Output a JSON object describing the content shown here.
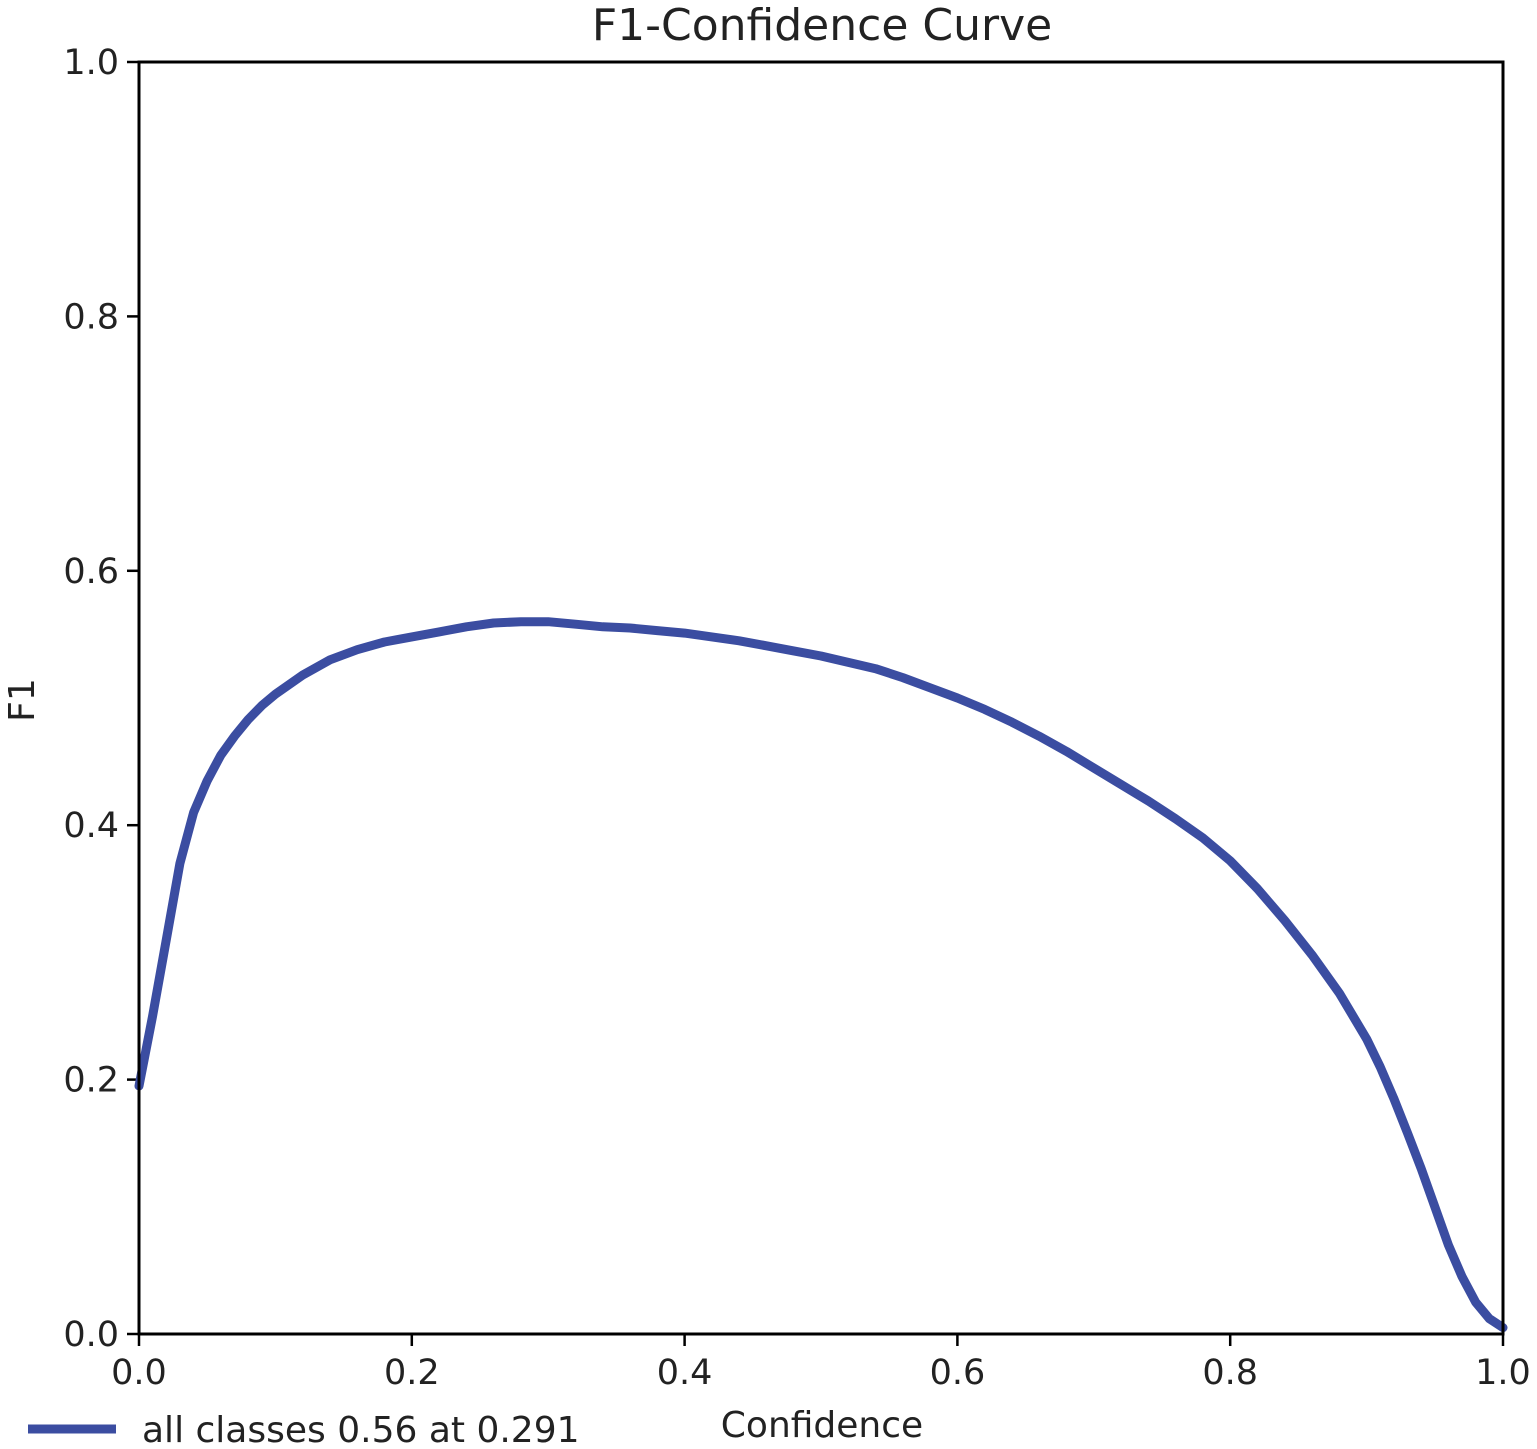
{
  "chart_data": {
    "type": "line",
    "title": "F1-Confidence Curve",
    "xlabel": "Confidence",
    "ylabel": "F1",
    "xlim": [
      0,
      1
    ],
    "ylim": [
      0,
      1
    ],
    "xticks": [
      "0.0",
      "0.2",
      "0.4",
      "0.6",
      "0.8",
      "1.0"
    ],
    "yticks": [
      "0.0",
      "0.2",
      "0.4",
      "0.6",
      "0.8",
      "1.0"
    ],
    "grid": false,
    "legend_position": "bottom-left",
    "series": [
      {
        "name": "all classes 0.56 at 0.291",
        "color": "#3b4da1",
        "x": [
          0.0,
          0.01,
          0.02,
          0.03,
          0.04,
          0.05,
          0.06,
          0.07,
          0.08,
          0.09,
          0.1,
          0.12,
          0.14,
          0.16,
          0.18,
          0.2,
          0.22,
          0.24,
          0.26,
          0.28,
          0.291,
          0.3,
          0.32,
          0.34,
          0.36,
          0.38,
          0.4,
          0.42,
          0.44,
          0.46,
          0.48,
          0.5,
          0.52,
          0.54,
          0.56,
          0.58,
          0.6,
          0.62,
          0.64,
          0.66,
          0.68,
          0.7,
          0.72,
          0.74,
          0.76,
          0.78,
          0.8,
          0.82,
          0.84,
          0.86,
          0.88,
          0.9,
          0.91,
          0.92,
          0.93,
          0.94,
          0.95,
          0.96,
          0.97,
          0.98,
          0.99,
          1.0
        ],
        "y": [
          0.195,
          0.25,
          0.31,
          0.37,
          0.41,
          0.435,
          0.455,
          0.47,
          0.483,
          0.494,
          0.503,
          0.518,
          0.53,
          0.538,
          0.544,
          0.548,
          0.552,
          0.556,
          0.559,
          0.56,
          0.56,
          0.56,
          0.558,
          0.556,
          0.555,
          0.553,
          0.551,
          0.548,
          0.545,
          0.541,
          0.537,
          0.533,
          0.528,
          0.523,
          0.516,
          0.508,
          0.5,
          0.491,
          0.481,
          0.47,
          0.458,
          0.445,
          0.432,
          0.419,
          0.405,
          0.39,
          0.372,
          0.35,
          0.325,
          0.298,
          0.268,
          0.232,
          0.21,
          0.185,
          0.158,
          0.13,
          0.1,
          0.07,
          0.045,
          0.025,
          0.012,
          0.005
        ]
      }
    ]
  }
}
